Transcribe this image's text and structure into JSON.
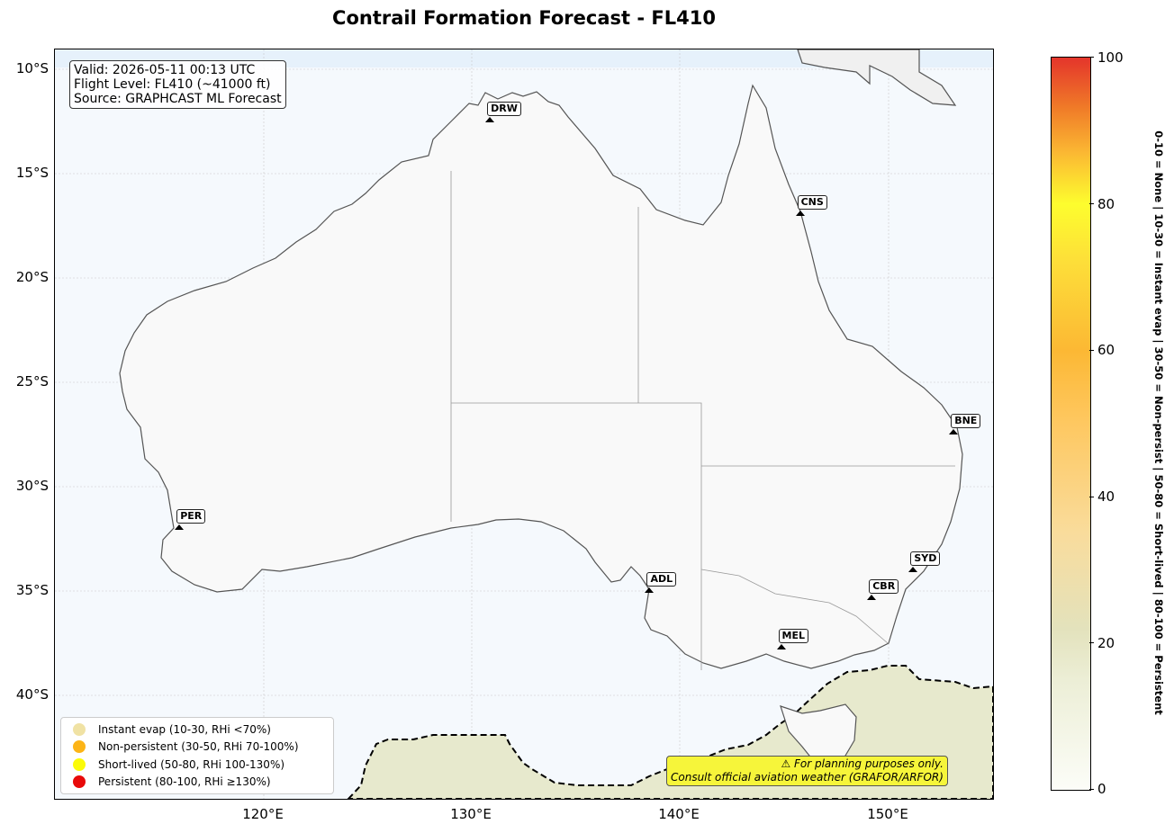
{
  "title": "Contrail Formation Forecast - FL410",
  "info_box": {
    "line1": "Valid: 2026-05-11 00:13 UTC",
    "line2": "Flight Level: FL410 (~41000 ft)",
    "line3": "Source: GRAPHCAST ML Forecast"
  },
  "lat_ticks": [
    "10°S",
    "15°S",
    "20°S",
    "25°S",
    "30°S",
    "35°S",
    "40°S"
  ],
  "lon_ticks": [
    "120°E",
    "130°E",
    "140°E",
    "150°E"
  ],
  "airports": [
    {
      "code": "DRW",
      "lon": 130.87,
      "lat": -12.41
    },
    {
      "code": "CNS",
      "lon": 145.75,
      "lat": -16.88
    },
    {
      "code": "BNE",
      "lon": 153.12,
      "lat": -27.38
    },
    {
      "code": "PER",
      "lon": 115.97,
      "lat": -31.94
    },
    {
      "code": "SYD",
      "lon": 151.18,
      "lat": -33.95
    },
    {
      "code": "ADL",
      "lon": 138.53,
      "lat": -34.95
    },
    {
      "code": "CBR",
      "lon": 149.19,
      "lat": -35.31
    },
    {
      "code": "MEL",
      "lon": 144.84,
      "lat": -37.67
    }
  ],
  "legend": [
    {
      "label": "Instant evap (10-30, RHi <70%)",
      "color": "#f0e2a4"
    },
    {
      "label": "Non-persistent (30-50, RHi 70-100%)",
      "color": "#fcb417"
    },
    {
      "label": "Short-lived (50-80, RHi 100-130%)",
      "color": "#fbfb09"
    },
    {
      "label": "Persistent (80-100, RHi ≥130%)",
      "color": "#e80a0a"
    }
  ],
  "warning": {
    "line1": "⚠ For planning purposes only.",
    "line2": "Consult official aviation weather (GRAFOR/ARFOR)"
  },
  "colorbar": {
    "ticks": [
      "0",
      "20",
      "40",
      "60",
      "80",
      "100"
    ],
    "label": "0-10 = None  |  10-30 = Instant evap  |  30-50 = Non-persist  |  50-80 = Short-lived  |  80-100 = Persistent"
  }
}
